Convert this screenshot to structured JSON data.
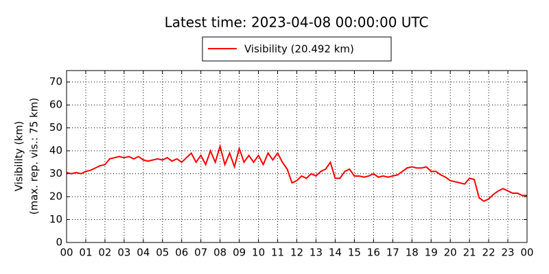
{
  "chart_data": {
    "type": "line",
    "title": "Latest time: 2023-04-08 00:00:00 UTC",
    "ylabel": [
      "Visibility (km)",
      "(max. rep. vis.: 75 km)"
    ],
    "x": [
      0,
      0.25,
      0.5,
      0.75,
      1,
      1.25,
      1.5,
      1.75,
      2,
      2.25,
      2.5,
      2.75,
      3,
      3.25,
      3.5,
      3.75,
      4,
      4.25,
      4.5,
      4.75,
      5,
      5.25,
      5.5,
      5.75,
      6,
      6.25,
      6.5,
      6.75,
      7,
      7.25,
      7.5,
      7.75,
      8,
      8.25,
      8.5,
      8.75,
      9,
      9.25,
      9.5,
      9.75,
      10,
      10.25,
      10.5,
      10.75,
      11,
      11.25,
      11.5,
      11.75,
      12,
      12.25,
      12.5,
      12.75,
      13,
      13.25,
      13.5,
      13.75,
      14,
      14.25,
      14.5,
      14.75,
      15,
      15.25,
      15.5,
      15.75,
      16,
      16.25,
      16.5,
      16.75,
      17,
      17.25,
      17.5,
      17.75,
      18,
      18.25,
      18.5,
      18.75,
      19,
      19.25,
      19.5,
      19.75,
      20,
      20.25,
      20.5,
      20.75,
      21,
      21.25,
      21.5,
      21.75,
      22,
      22.25,
      22.5,
      22.75,
      23,
      23.25,
      23.5,
      23.75,
      24
    ],
    "series": [
      {
        "name": "Visibility (20.492 km)",
        "color": "#ff0000",
        "values": [
          30.5,
          30,
          30.5,
          30,
          31,
          31.5,
          32.5,
          33.5,
          34,
          36.5,
          37,
          37.5,
          37,
          37.5,
          36.5,
          37.5,
          36,
          35.5,
          36,
          36.5,
          36,
          37,
          35.5,
          36.5,
          35,
          37,
          39,
          35,
          38,
          34,
          40,
          35,
          42,
          34,
          39,
          33,
          41,
          35,
          38,
          35,
          38,
          34,
          39,
          36,
          39,
          35,
          32,
          26,
          27,
          29,
          28,
          30,
          29,
          31,
          32,
          35,
          28,
          28,
          31,
          32,
          29,
          29,
          28.5,
          29,
          30,
          28.5,
          29,
          28.5,
          29,
          29.5,
          31,
          32.5,
          33,
          32.5,
          32.5,
          33,
          31,
          31,
          29.5,
          28.5,
          27,
          26.5,
          26,
          25.5,
          28,
          27.5,
          19.5,
          18,
          19,
          21,
          22.5,
          23.5,
          22.5,
          21.5,
          21.5,
          20.5,
          20.5
        ]
      }
    ],
    "xlim": [
      0,
      24
    ],
    "xticks": [
      {
        "value": 0,
        "label": "00"
      },
      {
        "value": 1,
        "label": "01"
      },
      {
        "value": 2,
        "label": "02"
      },
      {
        "value": 3,
        "label": "03"
      },
      {
        "value": 4,
        "label": "04"
      },
      {
        "value": 5,
        "label": "05"
      },
      {
        "value": 6,
        "label": "06"
      },
      {
        "value": 7,
        "label": "07"
      },
      {
        "value": 8,
        "label": "08"
      },
      {
        "value": 9,
        "label": "09"
      },
      {
        "value": 10,
        "label": "10"
      },
      {
        "value": 11,
        "label": "11"
      },
      {
        "value": 12,
        "label": "12"
      },
      {
        "value": 13,
        "label": "13"
      },
      {
        "value": 14,
        "label": "14"
      },
      {
        "value": 15,
        "label": "15"
      },
      {
        "value": 16,
        "label": "16"
      },
      {
        "value": 17,
        "label": "17"
      },
      {
        "value": 18,
        "label": "18"
      },
      {
        "value": 19,
        "label": "19"
      },
      {
        "value": 20,
        "label": "20"
      },
      {
        "value": 21,
        "label": "21"
      },
      {
        "value": 22,
        "label": "22"
      },
      {
        "value": 23,
        "label": "23"
      },
      {
        "value": 24,
        "label": "00"
      }
    ],
    "ylim": [
      0,
      75
    ],
    "yticks": [
      0,
      10,
      20,
      30,
      40,
      50,
      60,
      70
    ],
    "grid": true
  }
}
